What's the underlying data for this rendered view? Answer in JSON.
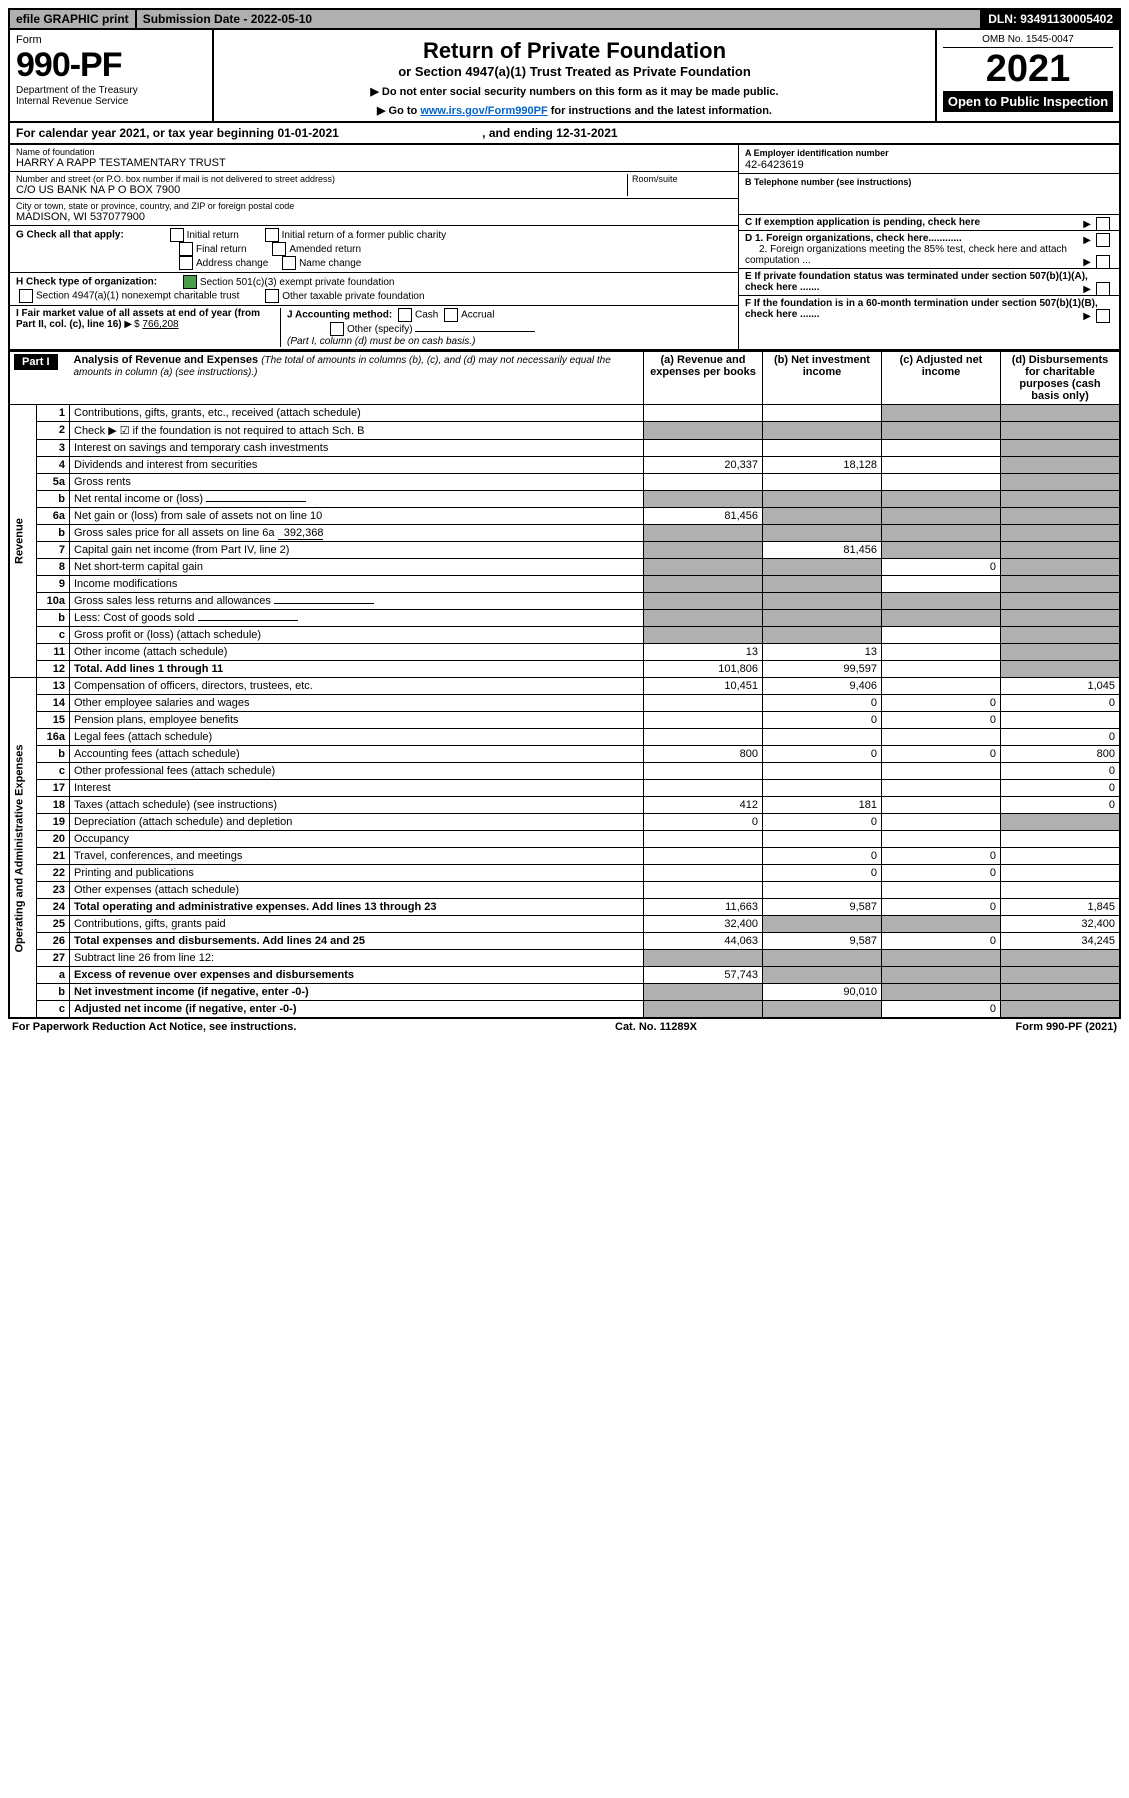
{
  "top": {
    "efile": "efile GRAPHIC print",
    "submission": "Submission Date - 2022-05-10",
    "dln": "DLN: 93491130005402"
  },
  "header": {
    "form_label": "Form",
    "form_number": "990-PF",
    "dept1": "Department of the Treasury",
    "dept2": "Internal Revenue Service",
    "title": "Return of Private Foundation",
    "subtitle": "or Section 4947(a)(1) Trust Treated as Private Foundation",
    "note1": "▶ Do not enter social security numbers on this form as it may be made public.",
    "note2_pre": "▶ Go to ",
    "note2_link": "www.irs.gov/Form990PF",
    "note2_post": " for instructions and the latest information.",
    "omb": "OMB No. 1545-0047",
    "year": "2021",
    "open": "Open to Public Inspection"
  },
  "cal": {
    "text_a": "For calendar year 2021, or tax year beginning 01-01-2021",
    "text_b": ", and ending 12-31-2021"
  },
  "info": {
    "name_lbl": "Name of foundation",
    "name_val": "HARRY A RAPP TESTAMENTARY TRUST",
    "addr_lbl": "Number and street (or P.O. box number if mail is not delivered to street address)",
    "addr_val": "C/O US BANK NA P O BOX 7900",
    "room_lbl": "Room/suite",
    "city_lbl": "City or town, state or province, country, and ZIP or foreign postal code",
    "city_val": "MADISON, WI  537077900",
    "ein_lbl": "A Employer identification number",
    "ein_val": "42-6423619",
    "tel_lbl": "B Telephone number (see instructions)",
    "c_lbl": "C If exemption application is pending, check here",
    "d1": "D 1. Foreign organizations, check here............",
    "d2": "2. Foreign organizations meeting the 85% test, check here and attach computation ...",
    "e": "E  If private foundation status was terminated under section 507(b)(1)(A), check here .......",
    "f": "F  If the foundation is in a 60-month termination under section 507(b)(1)(B), check here .......",
    "g_lbl": "G Check all that apply:",
    "g_opts": [
      "Initial return",
      "Initial return of a former public charity",
      "Final return",
      "Amended return",
      "Address change",
      "Name change"
    ],
    "h_lbl": "H Check type of organization:",
    "h1": "Section 501(c)(3) exempt private foundation",
    "h2": "Section 4947(a)(1) nonexempt charitable trust",
    "h3": "Other taxable private foundation",
    "i_lbl": "I Fair market value of all assets at end of year (from Part II, col. (c), line 16)",
    "i_val": "766,208",
    "j_lbl": "J Accounting method:",
    "j_cash": "Cash",
    "j_accrual": "Accrual",
    "j_other": "Other (specify)",
    "j_note": "(Part I, column (d) must be on cash basis.)"
  },
  "part1": {
    "label": "Part I",
    "title": "Analysis of Revenue and Expenses",
    "title_note": "(The total of amounts in columns (b), (c), and (d) may not necessarily equal the amounts in column (a) (see instructions).)",
    "cols": {
      "a": "(a)  Revenue and expenses per books",
      "b": "(b)  Net investment income",
      "c": "(c)  Adjusted net income",
      "d": "(d)  Disbursements for charitable purposes (cash basis only)"
    },
    "side_rev": "Revenue",
    "side_exp": "Operating and Administrative Expenses"
  },
  "rows": [
    {
      "n": "1",
      "d": "Contributions, gifts, grants, etc., received (attach schedule)",
      "a": "",
      "b": "",
      "c": "g",
      "dcol": "g"
    },
    {
      "n": "2",
      "d": "Check ▶ ☑ if the foundation is not required to attach Sch. B",
      "a": "g",
      "b": "g",
      "c": "g",
      "dcol": "g",
      "checked": true
    },
    {
      "n": "3",
      "d": "Interest on savings and temporary cash investments",
      "a": "",
      "b": "",
      "c": "",
      "dcol": "g"
    },
    {
      "n": "4",
      "d": "Dividends and interest from securities",
      "a": "20,337",
      "b": "18,128",
      "c": "",
      "dcol": "g"
    },
    {
      "n": "5a",
      "d": "Gross rents",
      "a": "",
      "b": "",
      "c": "",
      "dcol": "g"
    },
    {
      "n": "b",
      "d": "Net rental income or (loss)",
      "a": "g",
      "b": "g",
      "c": "g",
      "dcol": "g",
      "uline": true
    },
    {
      "n": "6a",
      "d": "Net gain or (loss) from sale of assets not on line 10",
      "a": "81,456",
      "b": "g",
      "c": "g",
      "dcol": "g"
    },
    {
      "n": "b",
      "d": "Gross sales price for all assets on line 6a",
      "a": "g",
      "b": "g",
      "c": "g",
      "dcol": "g",
      "inline": "392,368"
    },
    {
      "n": "7",
      "d": "Capital gain net income (from Part IV, line 2)",
      "a": "g",
      "b": "81,456",
      "c": "g",
      "dcol": "g"
    },
    {
      "n": "8",
      "d": "Net short-term capital gain",
      "a": "g",
      "b": "g",
      "c": "0",
      "dcol": "g"
    },
    {
      "n": "9",
      "d": "Income modifications",
      "a": "g",
      "b": "g",
      "c": "",
      "dcol": "g"
    },
    {
      "n": "10a",
      "d": "Gross sales less returns and allowances",
      "a": "g",
      "b": "g",
      "c": "g",
      "dcol": "g",
      "uline": true
    },
    {
      "n": "b",
      "d": "Less: Cost of goods sold",
      "a": "g",
      "b": "g",
      "c": "g",
      "dcol": "g",
      "uline": true
    },
    {
      "n": "c",
      "d": "Gross profit or (loss) (attach schedule)",
      "a": "g",
      "b": "g",
      "c": "",
      "dcol": "g"
    },
    {
      "n": "11",
      "d": "Other income (attach schedule)",
      "a": "13",
      "b": "13",
      "c": "",
      "dcol": "g"
    },
    {
      "n": "12",
      "d": "Total. Add lines 1 through 11",
      "a": "101,806",
      "b": "99,597",
      "c": "",
      "dcol": "g",
      "bold": true
    },
    {
      "n": "13",
      "d": "Compensation of officers, directors, trustees, etc.",
      "a": "10,451",
      "b": "9,406",
      "c": "",
      "dcol": "1,045"
    },
    {
      "n": "14",
      "d": "Other employee salaries and wages",
      "a": "",
      "b": "0",
      "c": "0",
      "dcol": "0"
    },
    {
      "n": "15",
      "d": "Pension plans, employee benefits",
      "a": "",
      "b": "0",
      "c": "0",
      "dcol": ""
    },
    {
      "n": "16a",
      "d": "Legal fees (attach schedule)",
      "a": "",
      "b": "",
      "c": "",
      "dcol": "0"
    },
    {
      "n": "b",
      "d": "Accounting fees (attach schedule)",
      "a": "800",
      "b": "0",
      "c": "0",
      "dcol": "800"
    },
    {
      "n": "c",
      "d": "Other professional fees (attach schedule)",
      "a": "",
      "b": "",
      "c": "",
      "dcol": "0"
    },
    {
      "n": "17",
      "d": "Interest",
      "a": "",
      "b": "",
      "c": "",
      "dcol": "0"
    },
    {
      "n": "18",
      "d": "Taxes (attach schedule) (see instructions)",
      "a": "412",
      "b": "181",
      "c": "",
      "dcol": "0"
    },
    {
      "n": "19",
      "d": "Depreciation (attach schedule) and depletion",
      "a": "0",
      "b": "0",
      "c": "",
      "dcol": "g"
    },
    {
      "n": "20",
      "d": "Occupancy",
      "a": "",
      "b": "",
      "c": "",
      "dcol": ""
    },
    {
      "n": "21",
      "d": "Travel, conferences, and meetings",
      "a": "",
      "b": "0",
      "c": "0",
      "dcol": ""
    },
    {
      "n": "22",
      "d": "Printing and publications",
      "a": "",
      "b": "0",
      "c": "0",
      "dcol": ""
    },
    {
      "n": "23",
      "d": "Other expenses (attach schedule)",
      "a": "",
      "b": "",
      "c": "",
      "dcol": ""
    },
    {
      "n": "24",
      "d": "Total operating and administrative expenses. Add lines 13 through 23",
      "a": "11,663",
      "b": "9,587",
      "c": "0",
      "dcol": "1,845",
      "bold": true
    },
    {
      "n": "25",
      "d": "Contributions, gifts, grants paid",
      "a": "32,400",
      "b": "g",
      "c": "g",
      "dcol": "32,400"
    },
    {
      "n": "26",
      "d": "Total expenses and disbursements. Add lines 24 and 25",
      "a": "44,063",
      "b": "9,587",
      "c": "0",
      "dcol": "34,245",
      "bold": true
    },
    {
      "n": "27",
      "d": "Subtract line 26 from line 12:",
      "a": "g",
      "b": "g",
      "c": "g",
      "dcol": "g"
    },
    {
      "n": "a",
      "d": "Excess of revenue over expenses and disbursements",
      "a": "57,743",
      "b": "g",
      "c": "g",
      "dcol": "g",
      "bold": true
    },
    {
      "n": "b",
      "d": "Net investment income (if negative, enter -0-)",
      "a": "g",
      "b": "90,010",
      "c": "g",
      "dcol": "g",
      "bold": true
    },
    {
      "n": "c",
      "d": "Adjusted net income (if negative, enter -0-)",
      "a": "g",
      "b": "g",
      "c": "0",
      "dcol": "g",
      "bold": true
    }
  ],
  "footer": {
    "left": "For Paperwork Reduction Act Notice, see instructions.",
    "mid": "Cat. No. 11289X",
    "right": "Form 990-PF (2021)"
  },
  "colors": {
    "grey": "#b0b0b0",
    "green": "#4a9d4a",
    "link": "#0066cc"
  }
}
